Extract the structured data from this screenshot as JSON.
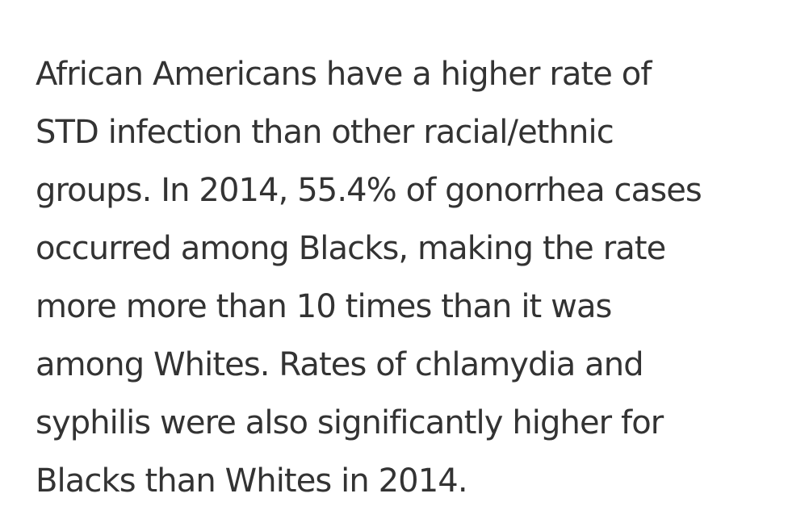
{
  "article": {
    "paragraph_lines": [
      "African Americans have a higher rate of",
      "STD infection than other racial/ethnic",
      "groups. In 2014, 55.4% of gonorrhea cases",
      "occurred among Blacks, making the rate",
      "more more than 10 times than it was",
      "among Whites. Rates of chlamydia and",
      "syphilis were also significantly higher for",
      "Blacks than Whites in 2014."
    ]
  },
  "colors": {
    "text": "#333333",
    "background": "#ffffff"
  }
}
